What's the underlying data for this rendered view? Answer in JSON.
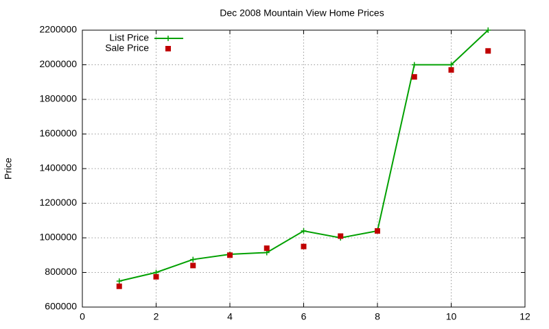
{
  "chart_data": {
    "type": "line",
    "title": "Dec 2008 Mountain View Home Prices",
    "y_label": "Price",
    "x": [
      1,
      2,
      3,
      4,
      5,
      6,
      7,
      8,
      9,
      10,
      11
    ],
    "series": [
      {
        "name": "List Price",
        "color": "#00a000",
        "mode": "linespoints",
        "values": [
          750000,
          800000,
          875000,
          905000,
          915000,
          1040000,
          1000000,
          1040000,
          2000000,
          2000000,
          2200000
        ]
      },
      {
        "name": "Sale Price",
        "color": "#c00000",
        "mode": "points",
        "values": [
          720000,
          775000,
          840000,
          900000,
          940000,
          950000,
          1010000,
          1040000,
          1930000,
          1970000,
          2080000
        ]
      }
    ],
    "xlim": [
      0,
      12
    ],
    "xticks": [
      0,
      2,
      4,
      6,
      8,
      10,
      12
    ],
    "ylim": [
      600000,
      2200000
    ],
    "yticks": [
      600000,
      800000,
      1000000,
      1200000,
      1400000,
      1600000,
      1800000,
      2000000,
      2200000
    ],
    "grid": true,
    "legend": "top-left"
  }
}
